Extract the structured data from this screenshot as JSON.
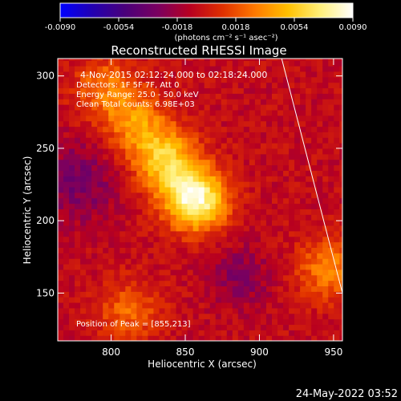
{
  "colorbar": {
    "ticks": [
      "-0.0090",
      "-0.0054",
      "-0.0018",
      "0.0018",
      "0.0054",
      "0.0090"
    ],
    "units": "(photons cm⁻² s⁻¹ asec⁻²)",
    "colors": [
      "#0000ff",
      "#2200b0",
      "#4a007a",
      "#7a0060",
      "#b80020",
      "#e03000",
      "#ff7a00",
      "#ffc000",
      "#fff07a",
      "#ffffff"
    ]
  },
  "chart_data": {
    "type": "heatmap",
    "title": "Reconstructed RHESSI Image",
    "xlabel": "Heliocentric X (arcsec)",
    "ylabel": "Heliocentric Y (arcsec)",
    "xlim": [
      764,
      956
    ],
    "ylim": [
      117,
      312
    ],
    "xticks": [
      800,
      850,
      900,
      950
    ],
    "yticks": [
      150,
      200,
      250,
      300
    ],
    "annotations": [
      "4-Nov-2015 02:12:24.000 to 02:18:24.000",
      "Detectors: 1F 5F 7F, Att 0",
      "Energy Range: 25.0 - 50.0 keV",
      "Clean     Total counts: 6.98E+03"
    ],
    "peak_label": "Position of Peak = [855,213]",
    "peak": [
      855,
      213
    ],
    "sources": [
      {
        "x": 855,
        "y": 213,
        "amp": 0.009
      },
      {
        "x": 835,
        "y": 240,
        "amp": 0.006
      },
      {
        "x": 815,
        "y": 265,
        "amp": 0.004
      },
      {
        "x": 795,
        "y": 290,
        "amp": 0.0035
      },
      {
        "x": 810,
        "y": 135,
        "amp": 0.003
      },
      {
        "x": 945,
        "y": 165,
        "amp": 0.004
      }
    ],
    "limb": [
      [
        915,
        312
      ],
      [
        956,
        150
      ]
    ]
  },
  "timestamp": "24-May-2022 03:52"
}
